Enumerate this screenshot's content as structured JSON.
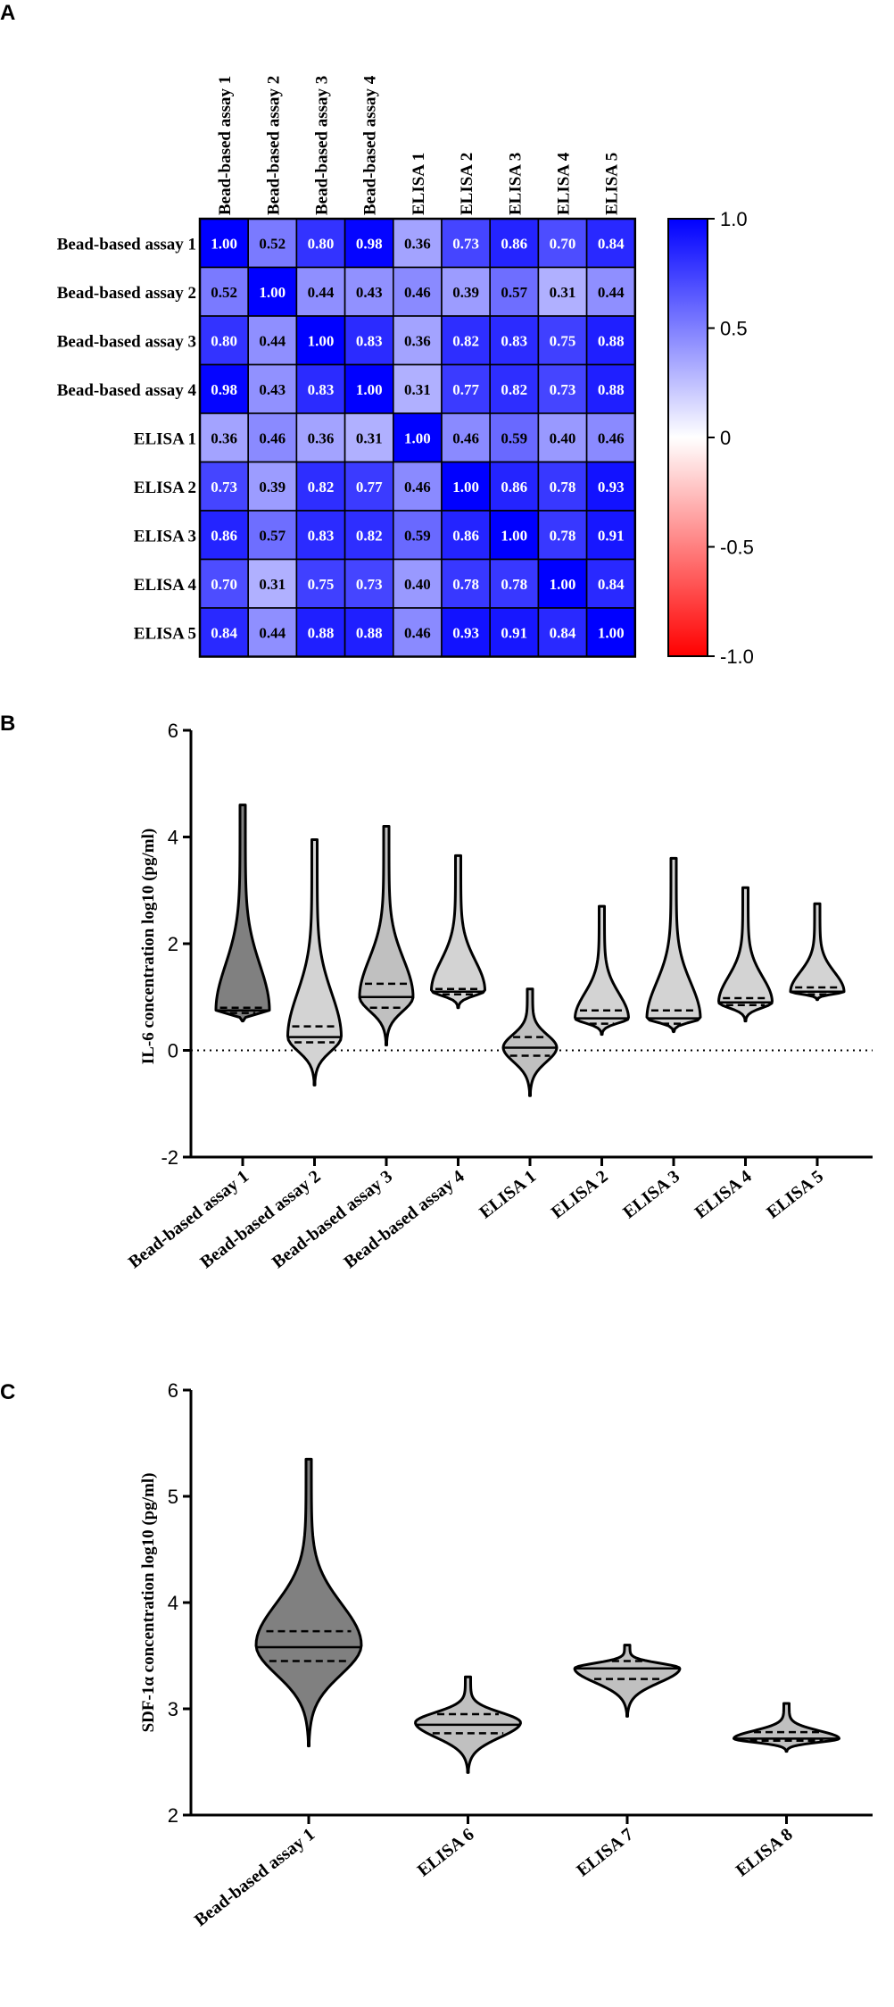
{
  "chart_data": [
    {
      "panel": "A",
      "type": "heatmap",
      "row_labels": [
        "Bead-based assay 1",
        "Bead-based assay 2",
        "Bead-based assay 3",
        "Bead-based assay 4",
        "ELISA 1",
        "ELISA 2",
        "ELISA 3",
        "ELISA 4",
        "ELISA 5"
      ],
      "col_labels": [
        "Bead-based assay 1",
        "Bead-based assay 2",
        "Bead-based assay 3",
        "Bead-based assay 4",
        "ELISA 1",
        "ELISA 2",
        "ELISA 3",
        "ELISA 4",
        "ELISA 5"
      ],
      "values": [
        [
          1.0,
          0.52,
          0.8,
          0.98,
          0.36,
          0.73,
          0.86,
          0.7,
          0.84
        ],
        [
          0.52,
          1.0,
          0.44,
          0.43,
          0.46,
          0.39,
          0.57,
          0.31,
          0.44
        ],
        [
          0.8,
          0.44,
          1.0,
          0.83,
          0.36,
          0.82,
          0.83,
          0.75,
          0.88
        ],
        [
          0.98,
          0.43,
          0.83,
          1.0,
          0.31,
          0.77,
          0.82,
          0.73,
          0.88
        ],
        [
          0.36,
          0.46,
          0.36,
          0.31,
          1.0,
          0.46,
          0.59,
          0.4,
          0.46
        ],
        [
          0.73,
          0.39,
          0.82,
          0.77,
          0.46,
          1.0,
          0.86,
          0.78,
          0.93
        ],
        [
          0.86,
          0.57,
          0.83,
          0.82,
          0.59,
          0.86,
          1.0,
          0.78,
          0.91
        ],
        [
          0.7,
          0.31,
          0.75,
          0.73,
          0.4,
          0.78,
          0.78,
          1.0,
          0.84
        ],
        [
          0.84,
          0.44,
          0.88,
          0.88,
          0.46,
          0.93,
          0.91,
          0.84,
          1.0
        ]
      ],
      "colorbar_ticks": [
        "1.0",
        "0.5",
        "0",
        "-0.5",
        "-1.0"
      ],
      "colorbar_range": [
        -1.0,
        1.0
      ],
      "colors": {
        "positive": "#0000ff",
        "zero": "#ffffff",
        "negative": "#ff0000"
      }
    },
    {
      "panel": "B",
      "type": "violin",
      "ylabel": "IL-6 concentration log10 (pg/ml)",
      "ylim": [
        -2,
        6
      ],
      "yticks": [
        "6",
        "4",
        "2",
        "0",
        "-2"
      ],
      "reference_line": 0,
      "categories": [
        "Bead-based assay 1",
        "Bead-based assay 2",
        "Bead-based assay 3",
        "Bead-based assay 4",
        "ELISA 1",
        "ELISA 2",
        "ELISA 3",
        "ELISA 4",
        "ELISA 5"
      ],
      "fill_colors": [
        "#808080",
        "#d3d3d3",
        "#c0c0c0",
        "#d3d3d3",
        "#c0c0c0",
        "#d3d3d3",
        "#d3d3d3",
        "#d3d3d3",
        "#d3d3d3"
      ],
      "violins": [
        {
          "min": 0.55,
          "max": 4.6,
          "median": 0.75,
          "q1": 0.7,
          "q3": 0.8,
          "mode": 0.75
        },
        {
          "min": -0.65,
          "max": 3.95,
          "median": 0.25,
          "q1": 0.15,
          "q3": 0.45,
          "mode": 0.25
        },
        {
          "min": 0.1,
          "max": 4.2,
          "median": 1.0,
          "q1": 0.8,
          "q3": 1.25,
          "mode": 1.0
        },
        {
          "min": 0.8,
          "max": 3.65,
          "median": 1.1,
          "q1": 1.05,
          "q3": 1.15,
          "mode": 1.12
        },
        {
          "min": -0.85,
          "max": 1.15,
          "median": 0.05,
          "q1": -0.1,
          "q3": 0.25,
          "mode": 0.05
        },
        {
          "min": 0.3,
          "max": 2.7,
          "median": 0.6,
          "q1": 0.5,
          "q3": 0.75,
          "mode": 0.6
        },
        {
          "min": 0.35,
          "max": 3.6,
          "median": 0.6,
          "q1": 0.5,
          "q3": 0.75,
          "mode": 0.6
        },
        {
          "min": 0.55,
          "max": 3.05,
          "median": 0.9,
          "q1": 0.85,
          "q3": 0.98,
          "mode": 0.9
        },
        {
          "min": 0.95,
          "max": 2.75,
          "median": 1.1,
          "q1": 1.05,
          "q3": 1.18,
          "mode": 1.1
        }
      ]
    },
    {
      "panel": "C",
      "type": "violin",
      "ylabel": "SDF-1α concentration log10 (pg/ml)",
      "ylim": [
        2,
        6
      ],
      "yticks": [
        "6",
        "5",
        "4",
        "3",
        "2"
      ],
      "categories": [
        "Bead-based assay 1",
        "ELISA 6",
        "ELISA 7",
        "ELISA 8"
      ],
      "fill_colors": [
        "#808080",
        "#c0c0c0",
        "#c0c0c0",
        "#c0c0c0"
      ],
      "violins": [
        {
          "min": 2.65,
          "max": 5.35,
          "median": 3.58,
          "q1": 3.45,
          "q3": 3.73,
          "mode": 3.6
        },
        {
          "min": 2.4,
          "max": 3.3,
          "median": 2.85,
          "q1": 2.77,
          "q3": 2.95,
          "mode": 2.87
        },
        {
          "min": 2.93,
          "max": 3.6,
          "median": 3.38,
          "q1": 3.28,
          "q3": 3.45,
          "mode": 3.38
        },
        {
          "min": 2.6,
          "max": 3.05,
          "median": 2.72,
          "q1": 2.7,
          "q3": 2.78,
          "mode": 2.72
        }
      ]
    }
  ]
}
